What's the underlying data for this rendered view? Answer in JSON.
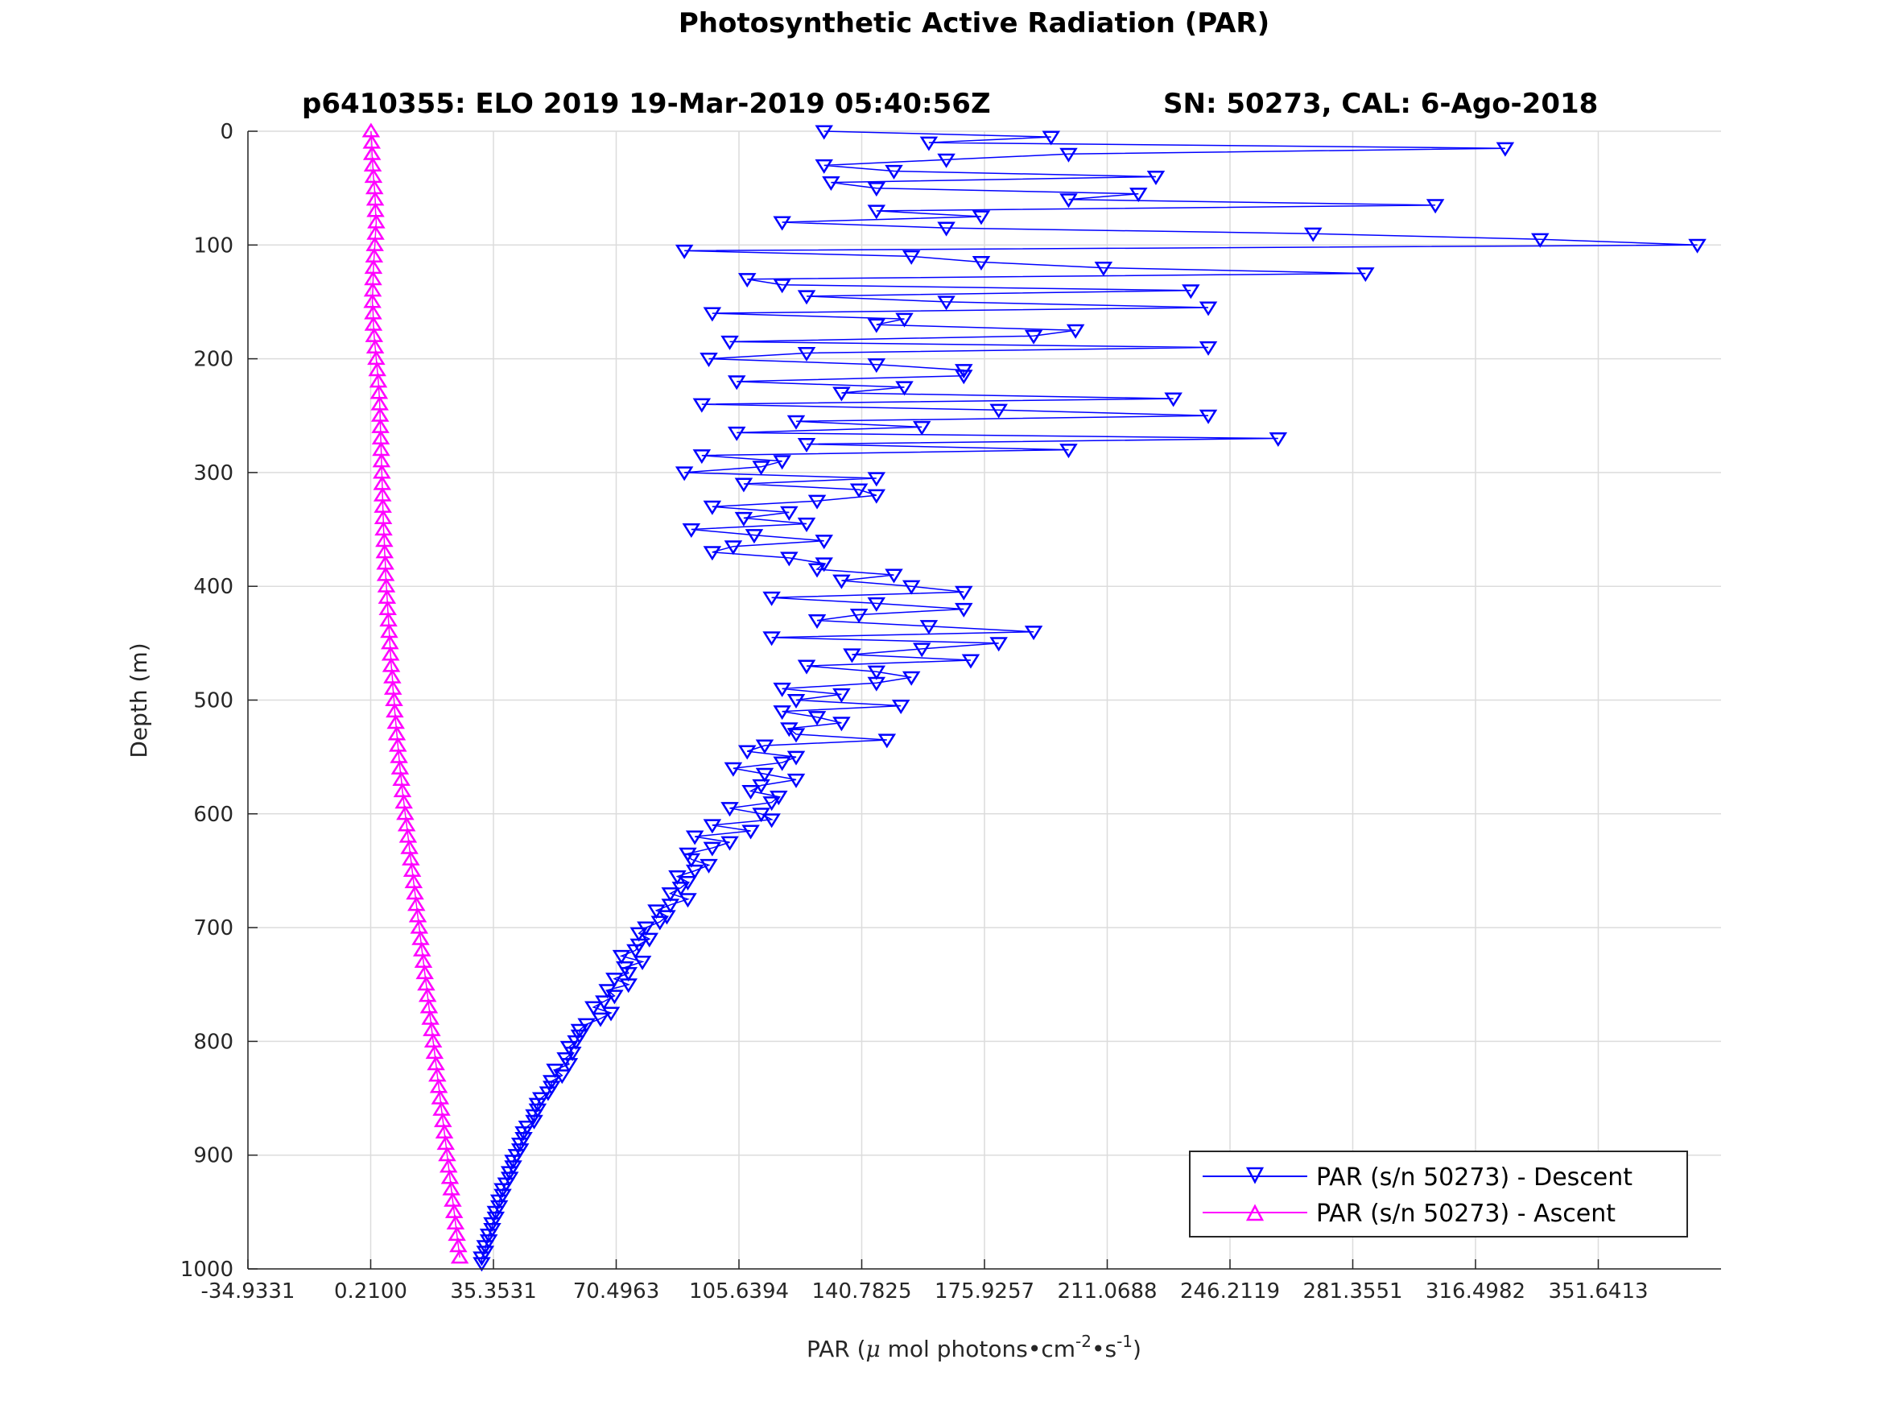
{
  "chart_data": {
    "type": "line",
    "title": "Photosynthetic Active Radiation (PAR)",
    "subtitle_left": "p6410355: ELO 2019 19-Mar-2019 05:40:56Z",
    "subtitle_right": "SN: 50273, CAL: 6-Ago-2018",
    "xlabel": {
      "prefix": "PAR (",
      "mu": "μ",
      "middle": " mol photons•cm",
      "sup1": "-2",
      "dot": "•s",
      "sup2": "-1",
      "suffix": ")"
    },
    "ylabel": "Depth (m)",
    "xlim": [
      -34.9331,
      386.7844
    ],
    "ylim": [
      0,
      1000
    ],
    "y_reversed": true,
    "xticks": [
      -34.9331,
      0.21,
      35.3531,
      70.4963,
      105.6394,
      140.7825,
      175.9257,
      211.0688,
      246.2119,
      281.3551,
      316.4982,
      351.6413
    ],
    "xtick_labels": [
      "-34.9331",
      "0.2100",
      "35.3531",
      "70.4963",
      "105.6394",
      "140.7825",
      "175.9257",
      "211.0688",
      "246.2119",
      "281.3551",
      "316.4982",
      "351.6413"
    ],
    "yticks": [
      0,
      100,
      200,
      300,
      400,
      500,
      600,
      700,
      800,
      900,
      1000
    ],
    "ytick_labels": [
      "0",
      "100",
      "200",
      "300",
      "400",
      "500",
      "600",
      "700",
      "800",
      "900",
      "1000"
    ],
    "grid": true,
    "legend_position": "bottom-right",
    "series": [
      {
        "name": "PAR (s/n 50273) - Descent",
        "color": "#0000ff",
        "marker": "triangle-down",
        "depth": [
          0,
          5,
          10,
          15,
          20,
          25,
          30,
          35,
          40,
          45,
          50,
          55,
          60,
          65,
          70,
          75,
          80,
          85,
          90,
          95,
          100,
          105,
          110,
          115,
          120,
          125,
          130,
          135,
          140,
          145,
          150,
          155,
          160,
          165,
          170,
          175,
          180,
          185,
          190,
          195,
          200,
          205,
          210,
          215,
          220,
          225,
          230,
          235,
          240,
          245,
          250,
          255,
          260,
          265,
          270,
          275,
          280,
          285,
          290,
          295,
          300,
          305,
          310,
          315,
          320,
          325,
          330,
          335,
          340,
          345,
          350,
          355,
          360,
          365,
          370,
          375,
          380,
          385,
          390,
          395,
          400,
          405,
          410,
          415,
          420,
          425,
          430,
          435,
          440,
          445,
          450,
          455,
          460,
          465,
          470,
          475,
          480,
          485,
          490,
          495,
          500,
          505,
          510,
          515,
          520,
          525,
          530,
          535,
          540,
          545,
          550,
          555,
          560,
          565,
          570,
          575,
          580,
          585,
          590,
          595,
          600,
          605,
          610,
          615,
          620,
          625,
          630,
          635,
          640,
          645,
          650,
          655,
          660,
          665,
          670,
          675,
          680,
          685,
          690,
          695,
          700,
          705,
          710,
          715,
          720,
          725,
          730,
          735,
          740,
          745,
          750,
          755,
          760,
          765,
          770,
          775,
          780,
          785,
          790,
          795,
          800,
          805,
          810,
          815,
          820,
          825,
          830,
          835,
          840,
          845,
          850,
          855,
          860,
          865,
          870,
          875,
          880,
          885,
          890,
          895,
          900,
          905,
          910,
          915,
          920,
          925,
          930,
          935,
          940,
          945,
          950,
          955,
          960,
          965,
          970,
          975,
          980,
          985,
          990,
          995
        ],
        "par": [
          130,
          195,
          160,
          325,
          200,
          165,
          130,
          150,
          225,
          132,
          145,
          220,
          200,
          305,
          145,
          175,
          118,
          165,
          270,
          335,
          380,
          90,
          155,
          175,
          210,
          285,
          108,
          118,
          235,
          125,
          165,
          240,
          98,
          153,
          145,
          202,
          190,
          103,
          240,
          125,
          97,
          145,
          170,
          170,
          105,
          153,
          135,
          230,
          95,
          180,
          240,
          122,
          158,
          105,
          260,
          125,
          200,
          95,
          118,
          112,
          90,
          145,
          107,
          140,
          145,
          128,
          98,
          120,
          107,
          125,
          92,
          110,
          130,
          104,
          98,
          120,
          130,
          128,
          150,
          135,
          155,
          170,
          115,
          145,
          170,
          140,
          128,
          160,
          190,
          115,
          180,
          158,
          138,
          172,
          125,
          145,
          155,
          145,
          118,
          135,
          122,
          152,
          118,
          128,
          135,
          120,
          122,
          148,
          113,
          108,
          122,
          118,
          104,
          113,
          122,
          112,
          109,
          117,
          115,
          103,
          112,
          115,
          98,
          109,
          93,
          103,
          98,
          91,
          92,
          97,
          93,
          88,
          91,
          89,
          86,
          91,
          86,
          82,
          85,
          83,
          79,
          77,
          80,
          77,
          76,
          72,
          78,
          73,
          74,
          70,
          74,
          68,
          70,
          67,
          64,
          69,
          66,
          62,
          60,
          60,
          59,
          57,
          58,
          56,
          57,
          53,
          55,
          52,
          52,
          51,
          49,
          48,
          48,
          47,
          47,
          45,
          44,
          44,
          43,
          43,
          42,
          41,
          41,
          40,
          40,
          39,
          38,
          38,
          37,
          37,
          36,
          36,
          35,
          35,
          34,
          34,
          33,
          33,
          32,
          32
        ]
      },
      {
        "name": "PAR (s/n 50273) - Ascent",
        "color": "#ff00ff",
        "marker": "triangle-up",
        "depth": [
          0,
          10,
          20,
          30,
          40,
          50,
          60,
          70,
          80,
          90,
          100,
          110,
          120,
          130,
          140,
          150,
          160,
          170,
          180,
          190,
          200,
          210,
          220,
          230,
          240,
          250,
          260,
          270,
          280,
          290,
          300,
          310,
          320,
          330,
          340,
          350,
          360,
          370,
          380,
          390,
          400,
          410,
          420,
          430,
          440,
          450,
          460,
          470,
          480,
          490,
          500,
          510,
          520,
          530,
          540,
          550,
          560,
          570,
          580,
          590,
          600,
          610,
          620,
          630,
          640,
          650,
          660,
          670,
          680,
          690,
          700,
          710,
          720,
          730,
          740,
          750,
          760,
          770,
          780,
          790,
          800,
          810,
          820,
          830,
          840,
          850,
          860,
          870,
          880,
          890,
          900,
          910,
          920,
          930,
          940,
          950,
          960,
          970,
          980,
          990
        ],
        "par": [
          0.3,
          0.5,
          0.6,
          0.8,
          1.0,
          1.3,
          1.5,
          1.6,
          1.8,
          1.6,
          1.4,
          1.2,
          1.0,
          0.9,
          0.8,
          0.7,
          0.9,
          1.0,
          1.2,
          1.5,
          1.8,
          2.1,
          2.4,
          2.6,
          2.8,
          2.9,
          3.0,
          3.1,
          3.2,
          3.3,
          3.4,
          3.5,
          3.6,
          3.7,
          3.8,
          3.9,
          4.1,
          4.2,
          4.4,
          4.5,
          4.7,
          4.9,
          5.1,
          5.3,
          5.5,
          5.7,
          5.9,
          6.1,
          6.4,
          6.6,
          6.9,
          7.1,
          7.4,
          7.7,
          8.0,
          8.3,
          8.6,
          9.0,
          9.3,
          9.7,
          10.1,
          10.5,
          10.9,
          11.3,
          11.7,
          12.1,
          12.5,
          12.9,
          13.3,
          13.7,
          14.1,
          14.5,
          14.9,
          15.3,
          15.7,
          16.1,
          16.5,
          16.9,
          17.3,
          17.7,
          18.1,
          18.5,
          18.9,
          19.3,
          19.7,
          20.1,
          20.5,
          20.9,
          21.3,
          21.7,
          22.1,
          22.5,
          22.9,
          23.3,
          23.7,
          24.1,
          24.5,
          24.9,
          25.3,
          25.7
        ]
      }
    ]
  }
}
